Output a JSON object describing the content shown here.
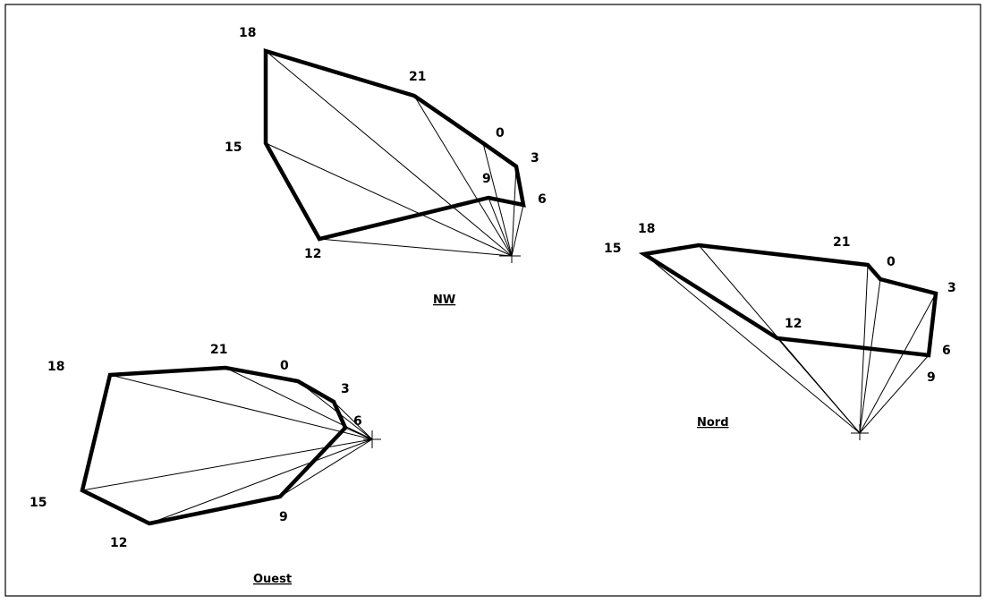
{
  "diagrams": [
    {
      "id": "nw",
      "title": "NW",
      "labels": [
        "18",
        "21",
        "0",
        "3",
        "9",
        "6",
        "15",
        "12"
      ]
    },
    {
      "id": "nord",
      "title": "Nord",
      "labels": [
        "18",
        "15",
        "21",
        "0",
        "3",
        "12",
        "6",
        "9"
      ]
    },
    {
      "id": "ouest",
      "title": "Ouest",
      "labels": [
        "18",
        "21",
        "0",
        "3",
        "6",
        "15",
        "12",
        "9"
      ]
    }
  ]
}
